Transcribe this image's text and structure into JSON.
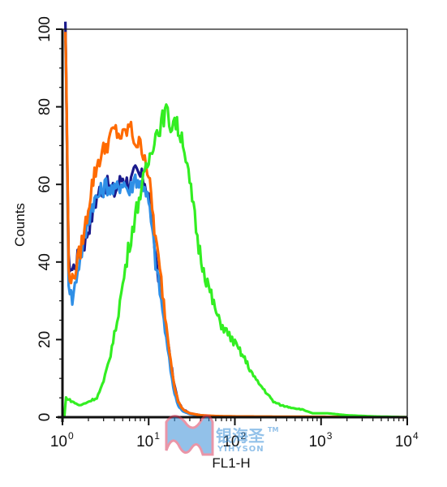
{
  "chart_data": {
    "type": "line",
    "title": "",
    "xlabel": "FL1-H",
    "ylabel": "Counts",
    "x_scale": "log",
    "xlim": [
      1,
      10000
    ],
    "ylim": [
      0,
      100
    ],
    "x_ticks": [
      {
        "base": "10",
        "exp": "0",
        "value": 1
      },
      {
        "base": "10",
        "exp": "1",
        "value": 10
      },
      {
        "base": "10",
        "exp": "2",
        "value": 100
      },
      {
        "base": "10",
        "exp": "3",
        "value": 1000
      },
      {
        "base": "10",
        "exp": "4",
        "value": 10000
      }
    ],
    "y_ticks": [
      0,
      20,
      40,
      60,
      80,
      100
    ],
    "grid": false,
    "legend": "none",
    "series": [
      {
        "color": "#1a1a8c",
        "points": [
          [
            1.08,
            100
          ],
          [
            1.12,
            78
          ],
          [
            1.18,
            40
          ],
          [
            1.3,
            38
          ],
          [
            1.5,
            41
          ],
          [
            1.8,
            45
          ],
          [
            2.2,
            52
          ],
          [
            2.6,
            58
          ],
          [
            3.2,
            60
          ],
          [
            4,
            58
          ],
          [
            5,
            62
          ],
          [
            6,
            60
          ],
          [
            7,
            63
          ],
          [
            8,
            62
          ],
          [
            9,
            61
          ],
          [
            10,
            57
          ],
          [
            11,
            50
          ],
          [
            12,
            42
          ],
          [
            14,
            32
          ],
          [
            16,
            22
          ],
          [
            18,
            14
          ],
          [
            20,
            8
          ],
          [
            22,
            4
          ],
          [
            25,
            2
          ],
          [
            30,
            1
          ],
          [
            40,
            0.5
          ],
          [
            60,
            0.2
          ],
          [
            100,
            0
          ]
        ]
      },
      {
        "color": "#2f8fe6",
        "points": [
          [
            1.08,
            99
          ],
          [
            1.12,
            76
          ],
          [
            1.18,
            35
          ],
          [
            1.3,
            30
          ],
          [
            1.5,
            38
          ],
          [
            1.8,
            46
          ],
          [
            2.2,
            55
          ],
          [
            2.6,
            57
          ],
          [
            3.2,
            60
          ],
          [
            4,
            58
          ],
          [
            5,
            61
          ],
          [
            6,
            58
          ],
          [
            7,
            62
          ],
          [
            8,
            60
          ],
          [
            9,
            60
          ],
          [
            10,
            55
          ],
          [
            11,
            48
          ],
          [
            12,
            40
          ],
          [
            14,
            30
          ],
          [
            16,
            20
          ],
          [
            18,
            12
          ],
          [
            20,
            6
          ],
          [
            22,
            3
          ],
          [
            25,
            1.5
          ],
          [
            30,
            0.8
          ],
          [
            40,
            0.4
          ],
          [
            60,
            0.2
          ],
          [
            100,
            0
          ]
        ]
      },
      {
        "color": "#ff6a00",
        "points": [
          [
            1.08,
            100
          ],
          [
            1.12,
            80
          ],
          [
            1.18,
            38
          ],
          [
            1.3,
            35
          ],
          [
            1.5,
            40
          ],
          [
            1.8,
            48
          ],
          [
            2.2,
            60
          ],
          [
            2.6,
            66
          ],
          [
            3.2,
            70
          ],
          [
            4,
            74
          ],
          [
            5,
            72
          ],
          [
            6,
            75
          ],
          [
            7,
            71
          ],
          [
            8,
            70
          ],
          [
            9,
            68
          ],
          [
            10,
            62
          ],
          [
            11,
            54
          ],
          [
            12,
            46
          ],
          [
            14,
            35
          ],
          [
            16,
            24
          ],
          [
            18,
            15
          ],
          [
            20,
            8
          ],
          [
            22,
            4
          ],
          [
            25,
            2
          ],
          [
            30,
            1
          ],
          [
            40,
            0.5
          ],
          [
            60,
            0.3
          ],
          [
            100,
            0.2
          ],
          [
            1000,
            0.1
          ],
          [
            10000,
            0
          ]
        ]
      },
      {
        "color": "#33ee22",
        "points": [
          [
            1.05,
            0
          ],
          [
            1.1,
            5
          ],
          [
            1.3,
            4
          ],
          [
            1.6,
            3
          ],
          [
            2,
            4
          ],
          [
            2.5,
            5
          ],
          [
            3,
            9
          ],
          [
            3.5,
            15
          ],
          [
            4,
            21
          ],
          [
            5,
            34
          ],
          [
            6,
            45
          ],
          [
            7,
            52
          ],
          [
            8,
            58
          ],
          [
            9,
            62
          ],
          [
            10,
            66
          ],
          [
            11,
            70
          ],
          [
            12,
            73
          ],
          [
            13,
            74
          ],
          [
            14,
            76
          ],
          [
            16,
            79
          ],
          [
            18,
            75
          ],
          [
            20,
            77
          ],
          [
            22,
            74
          ],
          [
            25,
            72
          ],
          [
            28,
            64
          ],
          [
            32,
            56
          ],
          [
            38,
            44
          ],
          [
            45,
            37
          ],
          [
            55,
            30
          ],
          [
            65,
            25
          ],
          [
            80,
            22
          ],
          [
            100,
            19
          ],
          [
            130,
            15
          ],
          [
            170,
            10
          ],
          [
            220,
            7
          ],
          [
            280,
            4
          ],
          [
            350,
            3
          ],
          [
            450,
            2.5
          ],
          [
            600,
            2
          ],
          [
            800,
            1
          ],
          [
            1200,
            1
          ],
          [
            2000,
            0.5
          ],
          [
            4000,
            0.2
          ],
          [
            10000,
            0
          ]
        ]
      }
    ]
  },
  "watermark": {
    "chinese": "银海圣",
    "latin": "YIHYSON",
    "tm": "TM"
  }
}
